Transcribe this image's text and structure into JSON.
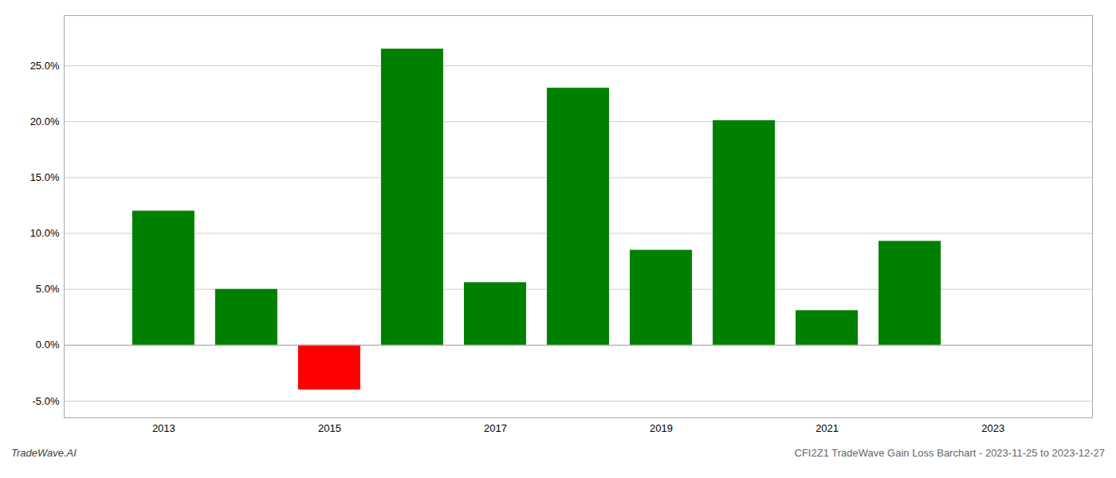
{
  "chart_data": {
    "type": "bar",
    "x": [
      2013,
      2014,
      2015,
      2016,
      2017,
      2018,
      2019,
      2020,
      2021,
      2022
    ],
    "values": [
      0.12,
      0.05,
      -0.04,
      0.265,
      0.056,
      0.23,
      0.085,
      0.201,
      0.031,
      0.093
    ],
    "colors": [
      "#008000",
      "#008000",
      "#ff0000",
      "#008000",
      "#008000",
      "#008000",
      "#008000",
      "#008000",
      "#008000",
      "#008000"
    ],
    "xlim": [
      2011.8,
      2024.2
    ],
    "xticks": [
      2013,
      2015,
      2017,
      2019,
      2021,
      2023
    ],
    "ylim": [
      -0.065,
      0.295
    ],
    "yticks": [
      {
        "value": -0.05,
        "label": "-5.0%"
      },
      {
        "value": 0.0,
        "label": "0.0%"
      },
      {
        "value": 0.05,
        "label": "5.0%"
      },
      {
        "value": 0.1,
        "label": "10.0%"
      },
      {
        "value": 0.15,
        "label": "15.0%"
      },
      {
        "value": 0.2,
        "label": "20.0%"
      },
      {
        "value": 0.25,
        "label": "25.0%"
      }
    ],
    "grid": true,
    "annotations": [
      "TradeWave.AI",
      "CFI2Z1 TradeWave Gain Loss Barchart - 2023-11-25 to 2023-12-27"
    ]
  }
}
